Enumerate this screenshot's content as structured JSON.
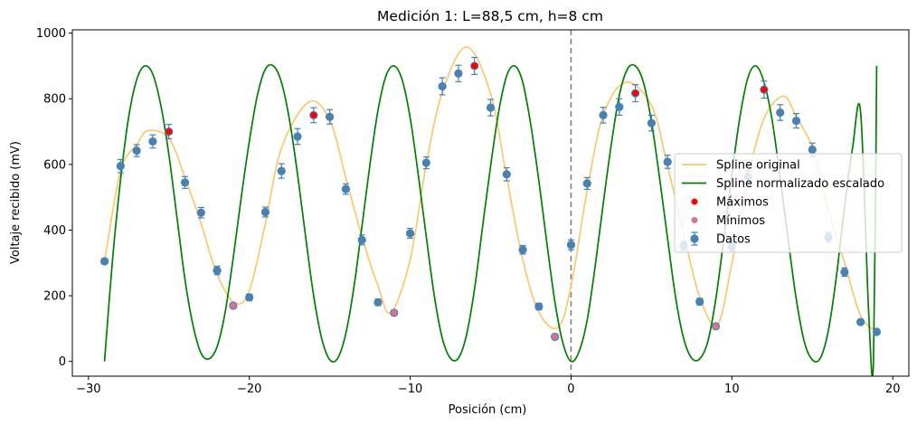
{
  "chart_data": {
    "type": "line",
    "title": "Medición 1: L=88,5 cm, h=8 cm",
    "xlabel": "Posición (cm)",
    "ylabel": "Voltaje recibido (mV)",
    "xlim": [
      -31,
      21
    ],
    "ylim": [
      -45,
      1010
    ],
    "xticks": [
      -30,
      -20,
      -10,
      0,
      10,
      20
    ],
    "yticks": [
      0,
      200,
      400,
      600,
      800,
      1000
    ],
    "grid": false,
    "legend_position": "center-right",
    "vline": {
      "x": 0,
      "style": "dashed",
      "color": "#808080"
    },
    "colors": {
      "spline_original": "#ffc465",
      "spline_scaled": "#008000",
      "maximos": "#ff0000",
      "minimos": "#db7093",
      "datos": "#4682b4"
    },
    "legend": [
      {
        "key": "spline_original",
        "label": "Spline original",
        "marker": "line"
      },
      {
        "key": "spline_scaled",
        "label": "Spline normalizado escalado",
        "marker": "line"
      },
      {
        "key": "maximos",
        "label": "Máximos",
        "marker": "dot"
      },
      {
        "key": "minimos",
        "label": "Mínimos",
        "marker": "dot"
      },
      {
        "key": "datos",
        "label": "Datos",
        "marker": "errorbar"
      }
    ],
    "series": [
      {
        "key": "datos",
        "name": "Datos",
        "type": "errorbar",
        "x": [
          -29,
          -28,
          -27,
          -26,
          -25,
          -24,
          -23,
          -22,
          -21,
          -20,
          -19,
          -18,
          -17,
          -16,
          -15,
          -14,
          -13,
          -12,
          -11,
          -10,
          -9,
          -8,
          -7,
          -6,
          -5,
          -4,
          -3,
          -2,
          -1,
          0,
          1,
          2,
          3,
          4,
          5,
          6,
          7,
          8,
          9,
          10,
          11,
          12,
          13,
          14,
          15,
          16,
          17,
          18,
          19
        ],
        "y": [
          305,
          595,
          642,
          670,
          700,
          545,
          453,
          277,
          170,
          195,
          455,
          580,
          685,
          750,
          745,
          525,
          370,
          180,
          148,
          390,
          605,
          838,
          877,
          900,
          773,
          570,
          340,
          167,
          75,
          355,
          542,
          750,
          775,
          817,
          726,
          608,
          352,
          182,
          107,
          350,
          562,
          828,
          758,
          733,
          645,
          378,
          272,
          120,
          90
        ],
        "err": [
          8,
          20,
          18,
          20,
          22,
          18,
          16,
          13,
          8,
          10,
          15,
          22,
          24,
          23,
          22,
          16,
          15,
          10,
          8,
          15,
          18,
          26,
          25,
          26,
          25,
          20,
          13,
          10,
          7,
          15,
          18,
          24,
          25,
          26,
          24,
          20,
          14,
          10,
          7,
          14,
          18,
          26,
          24,
          22,
          20,
          15,
          13,
          8,
          7
        ]
      },
      {
        "key": "maximos",
        "name": "Máximos",
        "type": "scatter",
        "x": [
          -25,
          -16,
          -6,
          4,
          12
        ],
        "y": [
          700,
          750,
          900,
          817,
          828
        ]
      },
      {
        "key": "minimos",
        "name": "Mínimos",
        "type": "scatter",
        "x": [
          -21,
          -11,
          -1,
          9
        ],
        "y": [
          170,
          148,
          75,
          107
        ]
      },
      {
        "key": "spline_original",
        "name": "Spline original",
        "type": "line",
        "x": [
          -29,
          -28,
          -27,
          -26.3,
          -25,
          -24,
          -23,
          -22,
          -20.9,
          -20,
          -19,
          -18,
          -16.3,
          -15,
          -14,
          -13,
          -12,
          -11.2,
          -10,
          -9,
          -8,
          -6.5,
          -5,
          -4,
          -3,
          -2,
          -0.8,
          0,
          1,
          2,
          3.4,
          5,
          6,
          7,
          8,
          9.1,
          10,
          11,
          12,
          13.2,
          14,
          15,
          16,
          17,
          18,
          19
        ],
        "y": [
          305,
          580,
          660,
          703,
          680,
          560,
          420,
          265,
          178,
          215,
          420,
          650,
          790,
          735,
          560,
          380,
          230,
          148,
          310,
          600,
          820,
          958,
          815,
          560,
          310,
          150,
          103,
          230,
          520,
          750,
          850,
          780,
          595,
          390,
          195,
          112,
          300,
          560,
          740,
          808,
          745,
          650,
          460,
          300,
          140,
          90
        ]
      },
      {
        "key": "spline_scaled",
        "name": "Spline normalizado escalado",
        "type": "line",
        "x": [
          -29,
          -28.5,
          -28,
          -27.5,
          -27,
          -26.5,
          -26,
          -25.5,
          -25,
          -24.5,
          -24,
          -23.5,
          -23,
          -22.5,
          -22,
          -21.5,
          -21,
          -20.5,
          -20,
          -19.5,
          -19,
          -18.5,
          -18,
          -17.5,
          -17,
          -16.5,
          -16,
          -15.5,
          -15,
          -14.5,
          -14,
          -13.5,
          -13,
          -12.5,
          -12,
          -11.5,
          -11,
          -10.5,
          -10,
          -9.5,
          -9,
          -8.5,
          -8,
          -7.5,
          -7,
          -6.5,
          -6,
          -5.5,
          -5,
          -4.5,
          -4,
          -3.5,
          -3,
          -2.5,
          -2,
          -1.5,
          -1,
          -0.5,
          0,
          0.5,
          1,
          1.5,
          2,
          2.5,
          3,
          3.5,
          4,
          4.5,
          5,
          5.5,
          6,
          6.5,
          7,
          7.5,
          8,
          8.5,
          9,
          9.5,
          10,
          10.5,
          11,
          11.5,
          12,
          12.5,
          13,
          13.5,
          14,
          14.5,
          15,
          15.5,
          16,
          16.5,
          17,
          17.5,
          18,
          18.5,
          18.8,
          19
        ],
        "y": [
          0,
          311,
          555,
          744,
          858,
          900,
          875,
          780,
          630,
          440,
          250,
          110,
          25,
          8,
          45,
          150,
          315,
          500,
          670,
          810,
          890,
          900,
          850,
          735,
          570,
          380,
          200,
          70,
          5,
          10,
          85,
          225,
          410,
          600,
          765,
          870,
          900,
          858,
          742,
          570,
          380,
          200,
          70,
          10,
          10,
          80,
          220,
          410,
          595,
          760,
          870,
          900,
          850,
          720,
          550,
          360,
          180,
          55,
          0,
          30,
          125,
          290,
          480,
          660,
          810,
          890,
          900,
          850,
          730,
          560,
          375,
          195,
          70,
          10,
          8,
          60,
          190,
          375,
          570,
          745,
          865,
          900,
          850,
          735,
          560,
          370,
          190,
          60,
          5,
          10,
          95,
          260,
          470,
          650,
          760,
          150,
          0,
          900
        ]
      }
    ]
  }
}
